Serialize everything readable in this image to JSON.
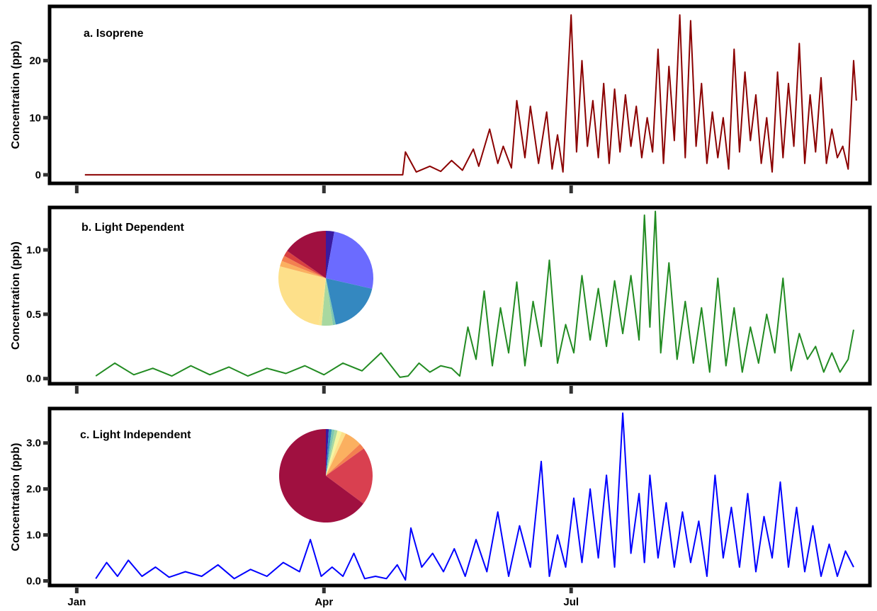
{
  "chart_data": [
    {
      "type": "line",
      "title": "a. Isoprene",
      "ylabel": "Concentration (ppb)",
      "ylim": [
        -1.5,
        29.5
      ],
      "yticks": [
        0,
        10,
        20
      ],
      "ytick_labels": [
        "0",
        "10",
        "20"
      ],
      "xlim": [
        "2019-12-22",
        "2019-11-04"
      ],
      "xtick_labels": [],
      "color": "#8b0000",
      "series": [
        {
          "x": [
            "2020-01-04",
            "2020-02-01",
            "2020-02-02",
            "2020-04-30",
            "2020-05-01",
            "2020-05-05",
            "2020-05-10",
            "2020-05-14",
            "2020-05-18",
            "2020-05-22",
            "2020-05-26",
            "2020-05-28",
            "2020-06-01",
            "2020-06-04",
            "2020-06-06",
            "2020-06-09",
            "2020-06-11",
            "2020-06-14",
            "2020-06-16",
            "2020-06-19",
            "2020-06-22",
            "2020-06-24",
            "2020-06-26",
            "2020-06-28",
            "2020-07-01",
            "2020-07-03",
            "2020-07-05",
            "2020-07-07",
            "2020-07-09",
            "2020-07-11",
            "2020-07-13",
            "2020-07-15",
            "2020-07-17",
            "2020-07-19",
            "2020-07-21",
            "2020-07-23",
            "2020-07-25",
            "2020-07-27",
            "2020-07-29",
            "2020-07-31",
            "2020-08-02",
            "2020-08-04",
            "2020-08-06",
            "2020-08-08",
            "2020-08-10",
            "2020-08-12",
            "2020-08-14",
            "2020-08-16",
            "2020-08-18",
            "2020-08-20",
            "2020-08-22",
            "2020-08-24",
            "2020-08-26",
            "2020-08-28",
            "2020-08-30",
            "2020-09-01",
            "2020-09-03",
            "2020-09-05",
            "2020-09-07",
            "2020-09-09",
            "2020-09-11",
            "2020-09-13",
            "2020-09-15",
            "2020-09-17",
            "2020-09-19",
            "2020-09-21",
            "2020-09-23",
            "2020-09-25",
            "2020-09-27",
            "2020-09-29",
            "2020-10-01",
            "2020-10-03",
            "2020-10-05",
            "2020-10-07",
            "2020-10-09",
            "2020-10-11",
            "2020-10-13",
            "2020-10-14"
          ],
          "y": [
            0,
            0,
            0,
            0,
            4,
            0.5,
            1.5,
            0.6,
            2.5,
            0.8,
            4.5,
            1.5,
            8,
            2,
            5,
            1.2,
            13,
            3,
            12,
            2,
            11,
            1,
            7,
            0.5,
            28,
            4,
            20,
            5,
            13,
            3,
            16,
            2,
            15,
            4,
            14,
            5,
            12,
            3,
            10,
            4,
            22,
            2,
            19,
            6,
            28,
            3,
            27,
            5,
            16,
            2,
            11,
            3,
            10,
            1,
            22,
            4,
            18,
            6,
            14,
            2,
            10,
            0.5,
            18,
            3,
            16,
            5,
            23,
            2,
            14,
            4,
            17,
            2,
            8,
            3,
            5,
            1,
            20,
            13
          ]
        }
      ]
    },
    {
      "type": "line",
      "title": "b. Light Dependent",
      "ylabel": "Concentration (ppb)",
      "ylim": [
        -0.04,
        1.33
      ],
      "yticks": [
        0.0,
        0.5,
        1.0
      ],
      "ytick_labels": [
        "0.0",
        "0.5",
        "1.0"
      ],
      "xlim": [
        "2019-12-22",
        "2020-10-19"
      ],
      "xtick_labels": [],
      "color": "#228b22",
      "series": [
        {
          "x": [
            "2020-01-08",
            "2020-01-15",
            "2020-01-22",
            "2020-01-29",
            "2020-02-05",
            "2020-02-12",
            "2020-02-19",
            "2020-02-26",
            "2020-03-04",
            "2020-03-11",
            "2020-03-18",
            "2020-03-25",
            "2020-04-01",
            "2020-04-08",
            "2020-04-15",
            "2020-04-22",
            "2020-04-29",
            "2020-05-02",
            "2020-05-06",
            "2020-05-10",
            "2020-05-14",
            "2020-05-18",
            "2020-05-21",
            "2020-05-24",
            "2020-05-27",
            "2020-05-30",
            "2020-06-02",
            "2020-06-05",
            "2020-06-08",
            "2020-06-11",
            "2020-06-14",
            "2020-06-17",
            "2020-06-20",
            "2020-06-23",
            "2020-06-26",
            "2020-06-29",
            "2020-07-02",
            "2020-07-05",
            "2020-07-08",
            "2020-07-11",
            "2020-07-14",
            "2020-07-17",
            "2020-07-20",
            "2020-07-23",
            "2020-07-26",
            "2020-07-28",
            "2020-07-30",
            "2020-08-01",
            "2020-08-03",
            "2020-08-06",
            "2020-08-09",
            "2020-08-12",
            "2020-08-15",
            "2020-08-18",
            "2020-08-21",
            "2020-08-24",
            "2020-08-27",
            "2020-08-30",
            "2020-09-02",
            "2020-09-05",
            "2020-09-08",
            "2020-09-11",
            "2020-09-14",
            "2020-09-17",
            "2020-09-20",
            "2020-09-23",
            "2020-09-26",
            "2020-09-29",
            "2020-10-02",
            "2020-10-05",
            "2020-10-08",
            "2020-10-11",
            "2020-10-13"
          ],
          "y": [
            0.02,
            0.12,
            0.03,
            0.08,
            0.02,
            0.1,
            0.03,
            0.09,
            0.02,
            0.08,
            0.04,
            0.1,
            0.03,
            0.12,
            0.06,
            0.2,
            0.01,
            0.02,
            0.12,
            0.05,
            0.1,
            0.08,
            0.02,
            0.4,
            0.15,
            0.68,
            0.1,
            0.55,
            0.2,
            0.75,
            0.1,
            0.6,
            0.25,
            0.92,
            0.12,
            0.42,
            0.2,
            0.8,
            0.3,
            0.7,
            0.25,
            0.76,
            0.35,
            0.8,
            0.3,
            1.27,
            0.4,
            1.3,
            0.2,
            0.9,
            0.15,
            0.6,
            0.12,
            0.55,
            0.05,
            0.78,
            0.1,
            0.55,
            0.05,
            0.4,
            0.12,
            0.5,
            0.2,
            0.78,
            0.06,
            0.35,
            0.15,
            0.25,
            0.05,
            0.2,
            0.05,
            0.15,
            0.38
          ]
        }
      ],
      "inset_pie": {
        "colors": [
          "#3a1aa0",
          "#6b6bff",
          "#3488c0",
          "#7fc8b0",
          "#a8d8a0",
          "#f5e58c",
          "#fde08a",
          "#fbb060",
          "#f38050",
          "#d94040",
          "#a01040"
        ],
        "values": [
          3,
          27,
          19,
          1,
          4,
          1,
          28,
          2,
          2,
          2,
          16
        ]
      }
    },
    {
      "type": "line",
      "title": "c. Light Independent",
      "ylabel": "Concentration (ppb)",
      "ylim": [
        -0.1,
        3.75
      ],
      "yticks": [
        0.0,
        1.0,
        2.0,
        3.0
      ],
      "ytick_labels": [
        "0.0",
        "1.0",
        "2.0",
        "3.0"
      ],
      "xlim": [
        "2019-12-22",
        "2020-10-19"
      ],
      "xtick_labels": [
        "Jan",
        "Apr",
        "Jul"
      ],
      "xtick_dates": [
        "2020-01-01",
        "2020-04-01",
        "2020-07-01"
      ],
      "color": "#0000ff",
      "series": [
        {
          "x": [
            "2020-01-08",
            "2020-01-12",
            "2020-01-16",
            "2020-01-20",
            "2020-01-25",
            "2020-01-30",
            "2020-02-04",
            "2020-02-10",
            "2020-02-16",
            "2020-02-22",
            "2020-02-28",
            "2020-03-05",
            "2020-03-11",
            "2020-03-17",
            "2020-03-23",
            "2020-03-27",
            "2020-03-31",
            "2020-04-04",
            "2020-04-08",
            "2020-04-12",
            "2020-04-16",
            "2020-04-20",
            "2020-04-24",
            "2020-04-28",
            "2020-05-01",
            "2020-05-03",
            "2020-05-07",
            "2020-05-11",
            "2020-05-15",
            "2020-05-19",
            "2020-05-23",
            "2020-05-27",
            "2020-05-31",
            "2020-06-04",
            "2020-06-08",
            "2020-06-12",
            "2020-06-16",
            "2020-06-20",
            "2020-06-23",
            "2020-06-26",
            "2020-06-29",
            "2020-07-02",
            "2020-07-05",
            "2020-07-08",
            "2020-07-11",
            "2020-07-14",
            "2020-07-17",
            "2020-07-20",
            "2020-07-23",
            "2020-07-26",
            "2020-07-28",
            "2020-07-30",
            "2020-08-02",
            "2020-08-05",
            "2020-08-08",
            "2020-08-11",
            "2020-08-14",
            "2020-08-17",
            "2020-08-20",
            "2020-08-23",
            "2020-08-26",
            "2020-08-29",
            "2020-09-01",
            "2020-09-04",
            "2020-09-07",
            "2020-09-10",
            "2020-09-13",
            "2020-09-16",
            "2020-09-19",
            "2020-09-22",
            "2020-09-25",
            "2020-09-28",
            "2020-10-01",
            "2020-10-04",
            "2020-10-07",
            "2020-10-10",
            "2020-10-13"
          ],
          "y": [
            0.05,
            0.4,
            0.1,
            0.45,
            0.1,
            0.3,
            0.08,
            0.2,
            0.1,
            0.35,
            0.05,
            0.25,
            0.1,
            0.4,
            0.2,
            0.9,
            0.1,
            0.3,
            0.1,
            0.6,
            0.05,
            0.1,
            0.05,
            0.35,
            0.02,
            1.15,
            0.3,
            0.6,
            0.2,
            0.7,
            0.1,
            0.9,
            0.2,
            1.5,
            0.1,
            1.2,
            0.3,
            2.6,
            0.1,
            1.0,
            0.3,
            1.8,
            0.4,
            2.0,
            0.5,
            2.3,
            0.3,
            3.65,
            0.6,
            1.9,
            0.4,
            2.3,
            0.5,
            1.7,
            0.3,
            1.5,
            0.4,
            1.3,
            0.1,
            2.3,
            0.5,
            1.6,
            0.3,
            1.9,
            0.2,
            1.4,
            0.5,
            2.15,
            0.3,
            1.6,
            0.2,
            1.2,
            0.1,
            0.8,
            0.1,
            0.65,
            0.3
          ]
        }
      ],
      "inset_pie": {
        "colors": [
          "#3a1aa0",
          "#3488c0",
          "#7fc8b0",
          "#a8d8a0",
          "#f5f5a0",
          "#fde08a",
          "#fbb060",
          "#f38050",
          "#d94050",
          "#a01040"
        ],
        "values": [
          1,
          1,
          1,
          1,
          1.5,
          1.5,
          6,
          2,
          20,
          64.5
        ]
      }
    }
  ]
}
